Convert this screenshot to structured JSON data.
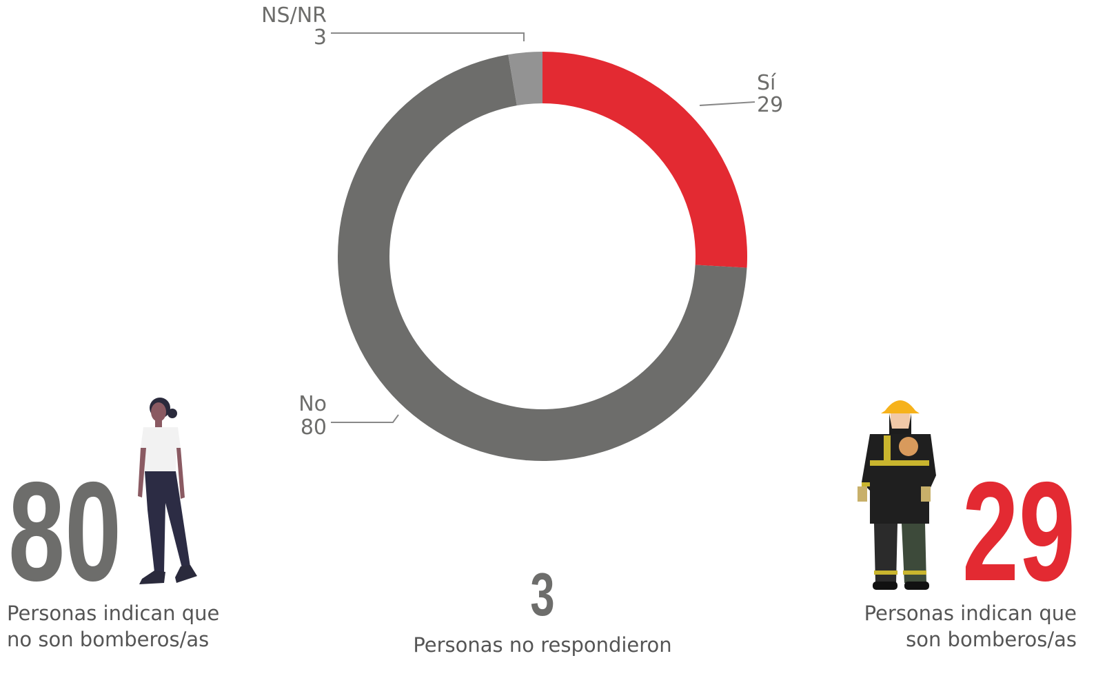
{
  "chart_data": {
    "type": "donut",
    "categories": [
      "Sí",
      "No",
      "NS/NR"
    ],
    "values": [
      29,
      80,
      3
    ],
    "colors": [
      "#e32a32",
      "#6d6d6b",
      "#939393"
    ]
  },
  "captions": {
    "no": [
      "Personas indican que",
      "no son bomberos/as"
    ],
    "nsnr": "Personas no respondieron",
    "si": [
      "Personas indican que",
      "son bomberos/as"
    ]
  }
}
